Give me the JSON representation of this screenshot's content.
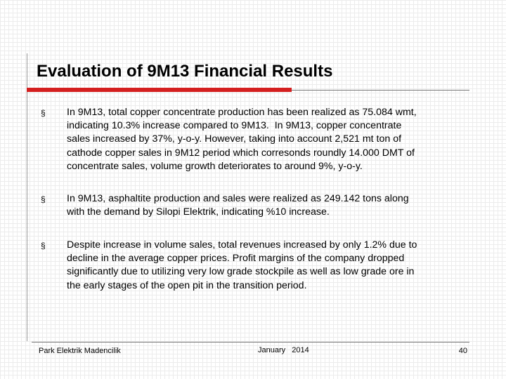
{
  "header": {
    "title": "Evaluation of 9M13 Financial Results"
  },
  "bullets": [
    {
      "marker": "§",
      "lines": [
        "In 9M13, total copper concentrate production has been realized as 75.084 wmt,",
        "indicating 10.3% increase compared to 9M13.  In 9M13, copper concentrate",
        "sales increased by 37%, y-o-y. However, taking into account 2,521 mt ton of",
        "cathode copper sales in 9M12 period which corresonds roundly 14.000 DMT of",
        "concentrate sales, volume growth deteriorates to around 9%, y-o-y."
      ]
    },
    {
      "marker": "§",
      "lines": [
        "In 9M13, asphaltite production and sales were realized as 249.142 tons along",
        "with the demand by Silopi Elektrik, indicating %10 increase."
      ]
    },
    {
      "marker": "§",
      "lines": [
        "Despite increase in volume sales, total revenues increased by only 1.2% due to",
        "decline in the average copper prices. Profit margins of the company dropped",
        "significantly due to utilizing very low grade stockpile as well as low grade ore in",
        "the early stages of the open pit in the transition period."
      ]
    }
  ],
  "footer": {
    "company": "Park Elektrik Madencilik",
    "date": "January   2014",
    "page": "40"
  }
}
